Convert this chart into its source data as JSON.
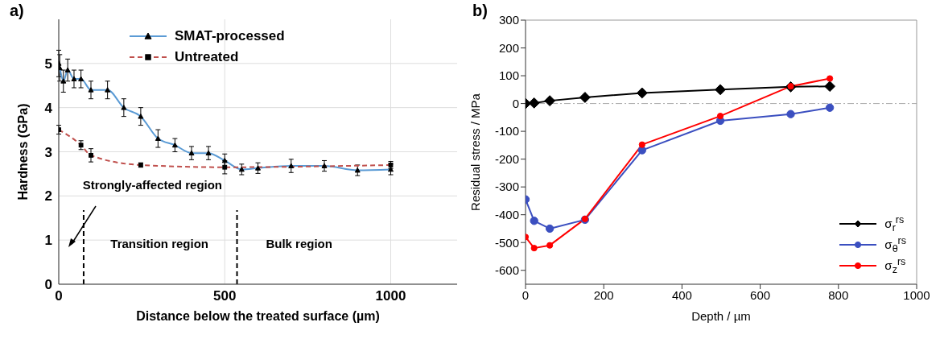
{
  "chart_data": [
    {
      "type": "line",
      "title": "a)",
      "xlabel": "Distance below the treated surface (µm)",
      "ylabel": "Hardness (GPa)",
      "xlim": [
        0,
        1200
      ],
      "xticks": [
        0,
        500,
        1000
      ],
      "ylim": [
        0,
        6
      ],
      "yticks": [
        0,
        1,
        2,
        3,
        4,
        5
      ],
      "grid": true,
      "legend": "top left",
      "annotations": [
        "Strongly-affected region",
        "Transition region",
        "Bulk region"
      ],
      "ref_lines": [
        {
          "axis": "x",
          "value": 75,
          "line_style": "dashed",
          "color": "#000000"
        },
        {
          "axis": "x",
          "value": 537,
          "line_style": "dashed",
          "color": "#000000"
        }
      ],
      "series": [
        {
          "name": "SMAT-processed",
          "color": "#5b9bd5",
          "marker": "triangle",
          "line_style": "solid",
          "x": [
            0,
            3,
            14,
            27,
            46,
            67,
            97,
            147,
            196,
            247,
            299,
            350,
            400,
            451,
            500,
            551,
            600,
            700,
            800,
            900,
            1000
          ],
          "values": [
            5.0,
            4.9,
            4.6,
            4.85,
            4.65,
            4.65,
            4.4,
            4.4,
            4.0,
            3.8,
            3.3,
            3.15,
            2.97,
            2.97,
            2.8,
            2.6,
            2.63,
            2.68,
            2.68,
            2.58,
            2.6
          ],
          "errors": [
            0.3,
            0.3,
            0.25,
            0.25,
            0.2,
            0.2,
            0.2,
            0.2,
            0.2,
            0.2,
            0.2,
            0.15,
            0.15,
            0.15,
            0.15,
            0.12,
            0.12,
            0.15,
            0.12,
            0.12,
            0.12
          ]
        },
        {
          "name": "Untreated",
          "color": "#c0504d",
          "marker": "square",
          "line_style": "dashed",
          "x": [
            0,
            67,
            97,
            247,
            500,
            1000
          ],
          "values": [
            3.5,
            3.15,
            2.92,
            2.7,
            2.65,
            2.7
          ],
          "errors": [
            0.1,
            0.1,
            0.15,
            0.05,
            0.15,
            0.08
          ]
        }
      ]
    },
    {
      "type": "line",
      "title": "b)",
      "xlabel": "Depth / µm",
      "ylabel": "Residual stress / MPa",
      "xlim": [
        0,
        1000
      ],
      "xticks": [
        0,
        200,
        400,
        600,
        800,
        1000
      ],
      "ylim": [
        -650,
        300
      ],
      "yticks": [
        -600,
        -500,
        -400,
        -300,
        -200,
        -100,
        0,
        100,
        200,
        300
      ],
      "legend": "bottom right",
      "ref_lines": [
        {
          "axis": "y",
          "value": 0,
          "line_style": "dashed",
          "color": "#aaaaaa"
        }
      ],
      "series": [
        {
          "name": "σ$_{r}$$^{rs}$",
          "color": "#000000",
          "marker": "diamond",
          "line_style": "solid",
          "x": [
            0,
            22,
            62,
            152,
            298,
            498,
            678,
            778
          ],
          "values": [
            0,
            2,
            10,
            22,
            38,
            50,
            60,
            62
          ]
        },
        {
          "name": "σ$_{θ}$$^{rs}$",
          "color": "#3b4fc0",
          "marker": "circle",
          "line_style": "solid",
          "x": [
            0,
            22,
            62,
            152,
            298,
            498,
            678,
            778
          ],
          "values": [
            -345,
            -422,
            -450,
            -418,
            -168,
            -62,
            -38,
            -15
          ]
        },
        {
          "name": "σ$_{z}$$^{rs}$",
          "color": "#ff0000",
          "marker": "circle",
          "line_style": "solid",
          "x": [
            0,
            22,
            62,
            152,
            298,
            498,
            678,
            778
          ],
          "values": [
            -480,
            -520,
            -510,
            -415,
            -148,
            -45,
            62,
            90
          ]
        }
      ]
    }
  ]
}
